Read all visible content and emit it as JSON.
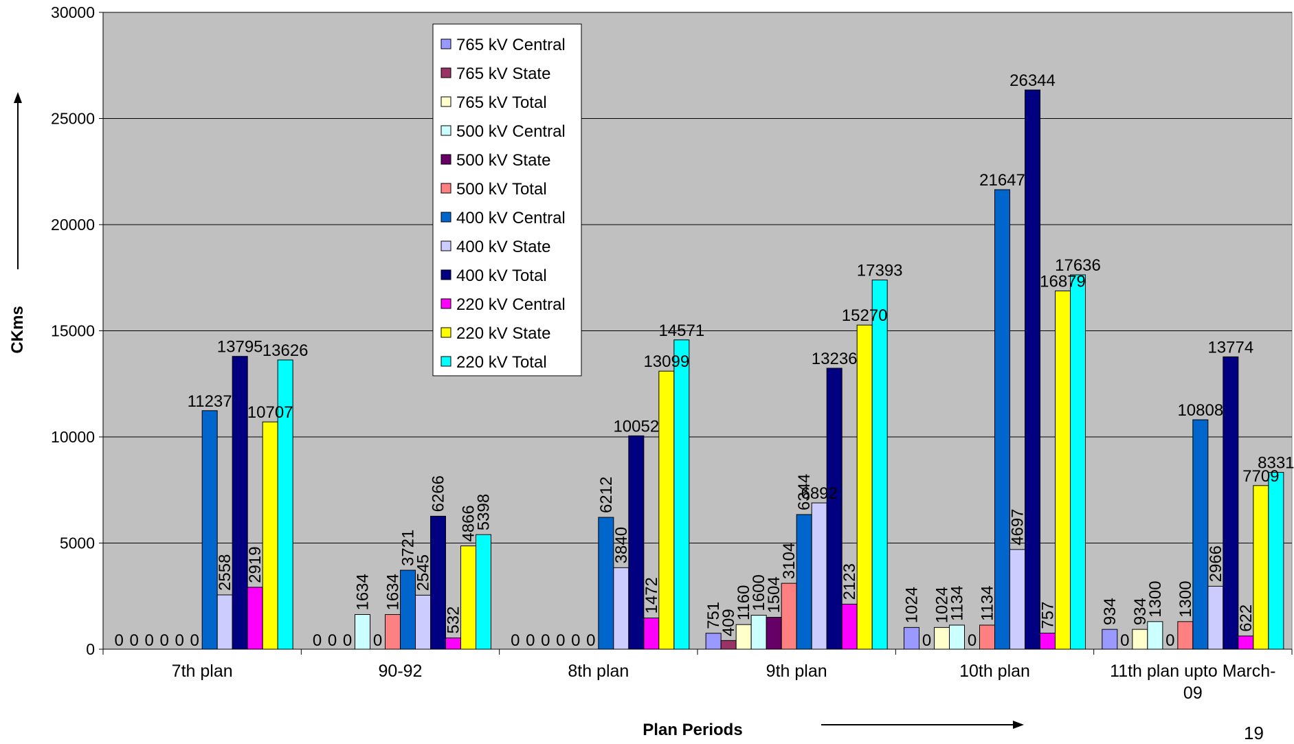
{
  "chart_data": {
    "type": "bar",
    "title": "",
    "xlabel": "Plan Periods",
    "ylabel": "CKms",
    "ylim": [
      0,
      30000
    ],
    "y_ticks": [
      "0",
      "5000",
      "10000",
      "15000",
      "20000",
      "25000",
      "30000"
    ],
    "categories": [
      "7th plan",
      "90-92",
      "8th plan",
      "9th plan",
      "10th plan",
      "11th plan upto March-09"
    ],
    "category_lines": [
      [
        "7th plan"
      ],
      [
        "90-92"
      ],
      [
        "8th plan"
      ],
      [
        "9th plan"
      ],
      [
        "10th plan"
      ],
      [
        "11th plan upto March-",
        "09"
      ]
    ],
    "grid": true,
    "legend_position": "top-center",
    "plot_background": "#c0c0c0",
    "series": [
      {
        "name": "765 kV Central",
        "color": "#9999ff",
        "values": [
          0,
          0,
          0,
          751,
          1024,
          934
        ]
      },
      {
        "name": "765 kV State",
        "color": "#993366",
        "values": [
          0,
          0,
          0,
          409,
          0,
          0
        ]
      },
      {
        "name": "765 kV Total",
        "color": "#ffffcc",
        "values": [
          0,
          0,
          0,
          1160,
          1024,
          934
        ]
      },
      {
        "name": "500 kV Central",
        "color": "#ccffff",
        "values": [
          0,
          1634,
          0,
          1600,
          1134,
          1300
        ]
      },
      {
        "name": "500 kV State",
        "color": "#660066",
        "values": [
          0,
          0,
          0,
          1504,
          0,
          0
        ]
      },
      {
        "name": "500 kV Total",
        "color": "#ff8080",
        "values": [
          0,
          1634,
          0,
          3104,
          1134,
          1300
        ]
      },
      {
        "name": "400 kV Central",
        "color": "#0066cc",
        "values": [
          11237,
          3721,
          6212,
          6344,
          21647,
          10808
        ]
      },
      {
        "name": "400 kV State",
        "color": "#ccccff",
        "values": [
          2558,
          2545,
          3840,
          6892,
          4697,
          2966
        ]
      },
      {
        "name": "400 kV Total",
        "color": "#000080",
        "values": [
          13795,
          6266,
          10052,
          13236,
          26344,
          13774
        ]
      },
      {
        "name": "220 kV Central",
        "color": "#ff00ff",
        "values": [
          2919,
          532,
          1472,
          2123,
          757,
          622
        ]
      },
      {
        "name": "220 kV State",
        "color": "#ffff00",
        "values": [
          10707,
          4866,
          13099,
          15270,
          16879,
          7709
        ]
      },
      {
        "name": "220 kV Total",
        "color": "#00ffff",
        "values": [
          13626,
          5398,
          14571,
          17393,
          17636,
          8331
        ]
      }
    ]
  },
  "page_number": "19"
}
